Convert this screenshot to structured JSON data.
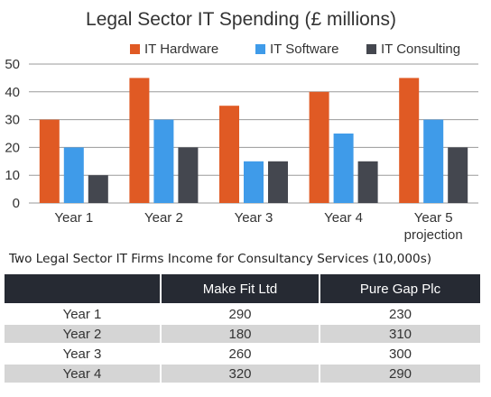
{
  "chart_data": {
    "type": "bar",
    "title": "Legal Sector IT Spending (£ millions)",
    "categories": [
      "Year 1",
      "Year 2",
      "Year 3",
      "Year 4",
      "Year 5\nprojection"
    ],
    "series": [
      {
        "name": "IT Hardware",
        "color": "#e05a24",
        "values": [
          30,
          45,
          35,
          40,
          45
        ]
      },
      {
        "name": "IT Software",
        "color": "#3f9be9",
        "values": [
          20,
          30,
          15,
          25,
          30
        ]
      },
      {
        "name": "IT Consulting",
        "color": "#44474f",
        "values": [
          10,
          20,
          15,
          15,
          20
        ]
      }
    ],
    "ylim": [
      0,
      50
    ],
    "yticks": [
      0,
      10,
      20,
      30,
      40,
      50
    ],
    "grid": true,
    "legend_position": "top"
  },
  "table": {
    "caption": "Two Legal Sector IT Firms Income for Consultancy Services (10,000s)",
    "headers": [
      "",
      "Make Fit Ltd",
      "Pure Gap Plc"
    ],
    "rows": [
      [
        "Year 1",
        "290",
        "230"
      ],
      [
        "Year 2",
        "180",
        "310"
      ],
      [
        "Year 3",
        "260",
        "300"
      ],
      [
        "Year 4",
        "320",
        "290"
      ]
    ]
  }
}
